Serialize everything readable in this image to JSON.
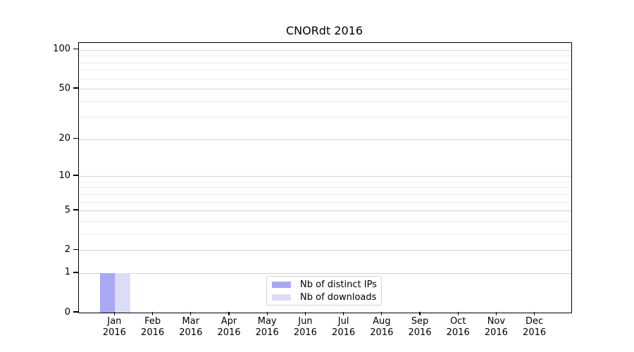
{
  "chart_data": {
    "type": "bar",
    "title": "CNORdt 2016",
    "categories": [
      "Jan",
      "Feb",
      "Mar",
      "Apr",
      "May",
      "Jun",
      "Jul",
      "Aug",
      "Sep",
      "Oct",
      "Nov",
      "Dec"
    ],
    "year_label": "2016",
    "series": [
      {
        "name": "Nb of distinct IPs",
        "color": "#a8a8f5",
        "values": [
          1,
          0,
          0,
          0,
          0,
          0,
          0,
          0,
          0,
          0,
          0,
          0
        ]
      },
      {
        "name": "Nb of downloads",
        "color": "#dcdcf9",
        "values": [
          1,
          0,
          0,
          0,
          0,
          0,
          0,
          0,
          0,
          0,
          0,
          0
        ]
      }
    ],
    "yscale": "log1p",
    "ylim": [
      0,
      113
    ],
    "y_major_ticks": [
      0,
      1,
      2,
      5,
      10,
      20,
      50,
      100
    ],
    "y_minor_gridlines": [
      3,
      4,
      6,
      7,
      8,
      9,
      30,
      40,
      60,
      70,
      80,
      90
    ],
    "grid": "horizontal",
    "legend_position": "lower center",
    "colors": {
      "background": "#ffffff",
      "spine": "#000000",
      "major_grid": "#d3d3d3",
      "minor_grid": "#ececec",
      "text": "#000000"
    }
  }
}
